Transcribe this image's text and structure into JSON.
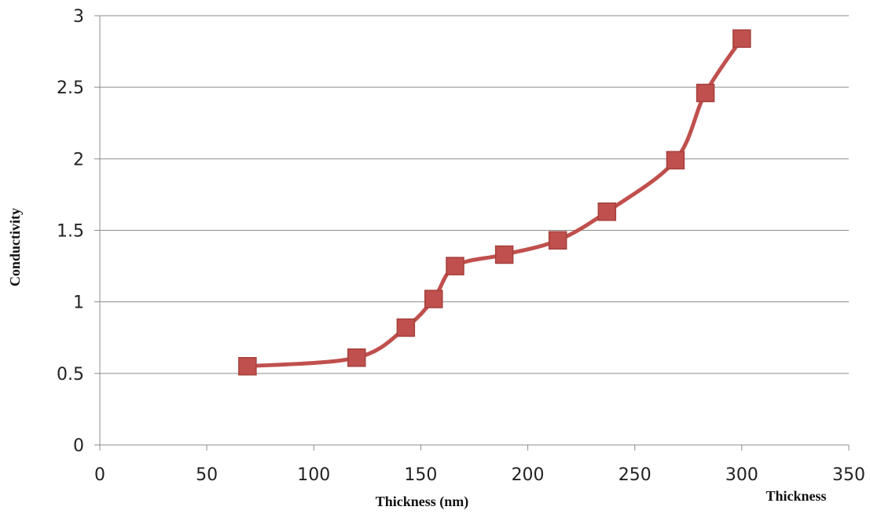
{
  "chart_data": {
    "type": "line",
    "title": "",
    "xlabel": "Thickness (nm)",
    "ylabel": "Conductivity",
    "extra_label": "Thickness",
    "xlim": [
      0,
      350
    ],
    "ylim": [
      0,
      3
    ],
    "x_ticks": [
      "0",
      "50",
      "100",
      "150",
      "200",
      "250",
      "300",
      "350"
    ],
    "y_ticks": [
      "0",
      "0.5",
      "1",
      "1.5",
      "2",
      "2.5",
      "3"
    ],
    "grid": "horizontal",
    "legend": "none",
    "series": [
      {
        "color": "#c0504d",
        "marker": "square",
        "smooth": true,
        "x": [
          69,
          120,
          143,
          156,
          166,
          189,
          214,
          237,
          269,
          283,
          300
        ],
        "y": [
          0.55,
          0.61,
          0.82,
          1.02,
          1.25,
          1.33,
          1.43,
          1.63,
          1.99,
          2.46,
          2.84
        ]
      }
    ]
  }
}
